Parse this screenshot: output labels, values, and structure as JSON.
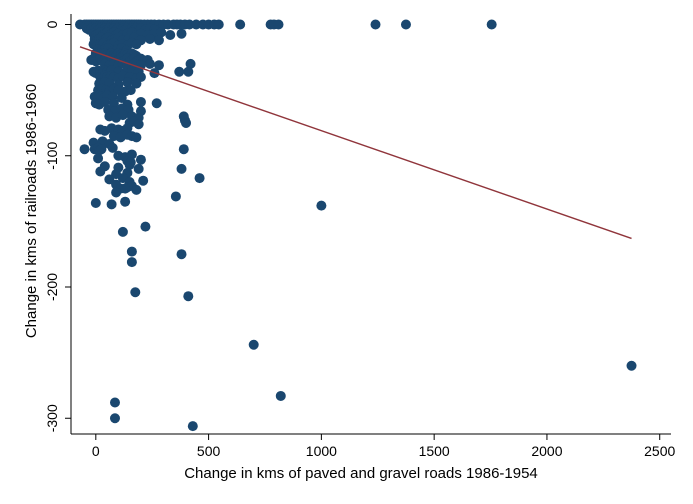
{
  "chart_data": {
    "type": "scatter",
    "xlabel": "Change in kms of paved and gravel roads 1986-1954",
    "ylabel": "Change in kms of railroads 1986-1960",
    "xlim": [
      -110,
      2550
    ],
    "ylim": [
      -312,
      8
    ],
    "xticks": [
      0,
      500,
      1000,
      1500,
      2000,
      2500
    ],
    "yticks": [
      0,
      -100,
      -200,
      -300
    ],
    "grid": false,
    "legend": "none",
    "colors": {
      "points": "#1a476f",
      "fit_line": "#90353b"
    },
    "fit_line": {
      "x": [
        -70,
        2375
      ],
      "y": [
        -17,
        -163
      ]
    },
    "points": {
      "x": [
        -70,
        -50,
        -40,
        -30,
        -20,
        -10,
        0,
        10,
        20,
        30,
        40,
        50,
        60,
        70,
        80,
        90,
        100,
        110,
        120,
        130,
        140,
        150,
        160,
        170,
        180,
        190,
        200,
        215,
        230,
        245,
        260,
        280,
        300,
        320,
        345,
        360,
        375,
        395,
        415,
        445,
        475,
        500,
        525,
        545,
        640,
        775,
        790,
        810,
        1240,
        1375,
        1755,
        -40,
        -30,
        -20,
        -10,
        0,
        10,
        20,
        30,
        40,
        50,
        60,
        70,
        80,
        90,
        100,
        110,
        120,
        130,
        140,
        150,
        160,
        170,
        180,
        190,
        200,
        220,
        240,
        260,
        -10,
        0,
        10,
        20,
        30,
        40,
        50,
        60,
        70,
        80,
        90,
        100,
        120,
        140,
        160,
        180,
        200,
        230,
        260,
        290,
        330,
        380,
        -5,
        5,
        15,
        25,
        35,
        45,
        55,
        70,
        85,
        100,
        120,
        145,
        170,
        200,
        240,
        280,
        -10,
        5,
        20,
        35,
        50,
        65,
        80,
        100,
        120,
        140,
        160,
        180,
        10,
        25,
        40,
        55,
        75,
        95,
        115,
        135,
        0,
        10,
        20,
        30,
        40,
        50,
        60,
        70,
        80,
        90,
        100,
        110,
        120,
        130,
        140,
        150,
        160,
        170,
        180,
        -20,
        -10,
        0,
        10,
        20,
        30,
        40,
        50,
        60,
        70,
        80,
        90,
        100,
        110,
        120,
        130,
        140,
        150,
        160,
        170,
        180,
        190,
        200,
        210,
        230,
        40,
        60,
        80,
        100,
        120,
        140,
        170,
        200,
        240,
        280,
        420,
        -10,
        0,
        10,
        20,
        30,
        40,
        50,
        60,
        70,
        100,
        130,
        160,
        190,
        260,
        370,
        410,
        20,
        30,
        40,
        50,
        60,
        70,
        80,
        100,
        120,
        150,
        180,
        200,
        15,
        25,
        40,
        60,
        100,
        140,
        180,
        10,
        20,
        30,
        45,
        60,
        80,
        100,
        130,
        155,
        -5,
        5,
        15,
        25,
        35,
        50,
        75,
        115,
        0,
        15,
        40,
        80,
        140,
        200,
        270,
        55,
        85,
        115,
        145,
        200,
        60,
        90,
        120,
        160,
        190,
        150,
        170,
        190,
        20,
        40,
        70,
        100,
        120,
        140,
        80,
        110,
        140,
        160,
        180,
        -10,
        30,
        60,
        -50,
        -5,
        10,
        15,
        25,
        75,
        100,
        130,
        160,
        390,
        395,
        400,
        10,
        140,
        200,
        40,
        100,
        150,
        190,
        20,
        90,
        140,
        60,
        120,
        150,
        210,
        380,
        90,
        110,
        140,
        160,
        180,
        130,
        120,
        90,
        390,
        160,
        0,
        70,
        160,
        410,
        700,
        820,
        1000,
        2375,
        460,
        355,
        220,
        175,
        155,
        130,
        85,
        85,
        430,
        380
      ],
      "y": [
        0,
        0,
        0,
        0,
        0,
        0,
        0,
        0,
        0,
        0,
        0,
        0,
        0,
        0,
        0,
        0,
        0,
        0,
        0,
        0,
        0,
        0,
        0,
        0,
        0,
        0,
        0,
        0,
        0,
        0,
        0,
        0,
        0,
        0,
        0,
        0,
        0,
        0,
        0,
        0,
        0,
        0,
        0,
        0,
        0,
        0,
        0,
        0,
        0,
        0,
        0,
        -3,
        -4,
        -3,
        -4,
        -3,
        -4,
        -3,
        -4,
        -3,
        -4,
        -3,
        -4,
        -3,
        -4,
        -3,
        -4,
        -3,
        -4,
        -3,
        -4,
        -3,
        -4,
        -3,
        -4,
        -3,
        -4,
        -3,
        -4,
        -7,
        -8,
        -7,
        -6,
        -8,
        -7,
        -6,
        -8,
        -7,
        -6,
        -8,
        -7,
        -8,
        -7,
        -6,
        -8,
        -7,
        -8,
        -7,
        -6,
        -8,
        -7,
        -11,
        -12,
        -11,
        -10,
        -12,
        -11,
        -10,
        -12,
        -11,
        -10,
        -12,
        -11,
        -10,
        -12,
        -11,
        -12,
        -15,
        -16,
        -15,
        -14,
        -16,
        -15,
        -14,
        -16,
        -15,
        -16,
        -14,
        -15,
        -19,
        -20,
        -19,
        -18,
        -20,
        -19,
        -18,
        -20,
        -22,
        -23,
        -22,
        -24,
        -22,
        -23,
        -24,
        -22,
        -23,
        -24,
        -22,
        -23,
        -24,
        -22,
        -23,
        -24,
        -22,
        -23,
        -24,
        -27,
        -26,
        -28,
        -27,
        -26,
        -28,
        -27,
        -26,
        -28,
        -27,
        -26,
        -28,
        -27,
        -26,
        -28,
        -27,
        -26,
        -28,
        -27,
        -26,
        -28,
        -27,
        -26,
        -28,
        -27,
        -30,
        -31,
        -30,
        -31,
        -30,
        -31,
        -30,
        -31,
        -30,
        -31,
        -30,
        -36,
        -37,
        -35,
        -36,
        -37,
        -35,
        -36,
        -37,
        -35,
        -36,
        -37,
        -35,
        -36,
        -37,
        -36,
        -36,
        -40,
        -41,
        -39,
        -40,
        -41,
        -39,
        -40,
        -41,
        -39,
        -40,
        -41,
        -40,
        -45,
        -46,
        -44,
        -45,
        -46,
        -44,
        -45,
        -50,
        -51,
        -49,
        -50,
        -51,
        -49,
        -50,
        -51,
        -50,
        -55,
        -56,
        -54,
        -55,
        -56,
        -54,
        -55,
        -56,
        -60,
        -61,
        -59,
        -60,
        -61,
        -59,
        -60,
        -65,
        -66,
        -64,
        -65,
        -66,
        -70,
        -71,
        -69,
        -70,
        -71,
        -75,
        -74,
        -76,
        -80,
        -81,
        -79,
        -80,
        -81,
        -79,
        -85,
        -86,
        -84,
        -85,
        -86,
        -90,
        -89,
        -91,
        -95,
        -95,
        -94,
        -96,
        -95,
        -94,
        -100,
        -101,
        -99,
        -70,
        -73,
        -75,
        -102,
        -104,
        -103,
        -108,
        -109,
        -107,
        -110,
        -112,
        -114,
        -113,
        -118,
        -117,
        -120,
        -119,
        -110,
        -122,
        -125,
        -124,
        -123,
        -126,
        -135,
        -158,
        -128,
        -95,
        -173,
        -136,
        -137,
        -181,
        -207,
        -244,
        -283,
        -138,
        -260,
        -117,
        -131,
        -154,
        -204,
        -105,
        -125,
        -288,
        -300,
        -306,
        -175
      ]
    }
  }
}
